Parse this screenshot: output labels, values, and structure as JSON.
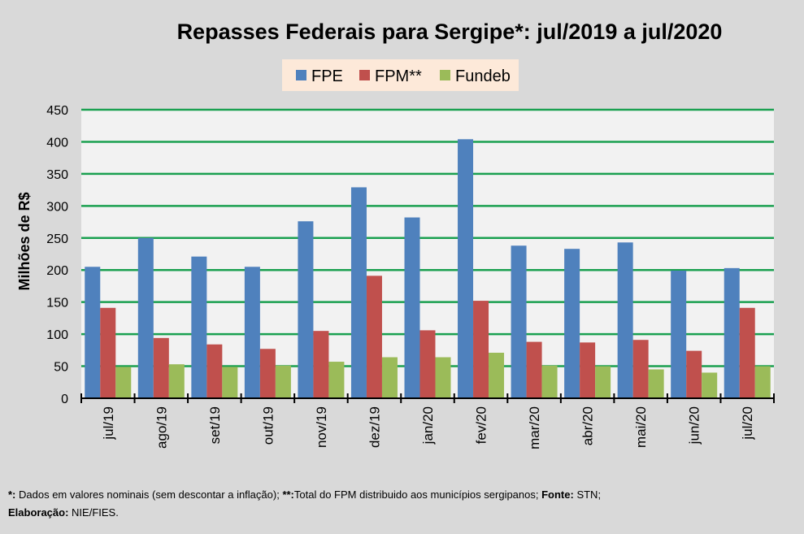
{
  "chart_data": {
    "type": "bar",
    "title": "Repasses Federais para Sergipe*: jul/2019 a jul/2020",
    "xlabel": "",
    "ylabel": "Milhões de R$",
    "ylim": [
      0,
      450
    ],
    "yticks": [
      0,
      50,
      100,
      150,
      200,
      250,
      300,
      350,
      400,
      450
    ],
    "grid": true,
    "legend_position": "top-center",
    "categories": [
      "jul/19",
      "ago/19",
      "set/19",
      "out/19",
      "nov/19",
      "dez/19",
      "jan/20",
      "fev/20",
      "mar/20",
      "abr/20",
      "mai/20",
      "jun/20",
      "jul/20"
    ],
    "series": [
      {
        "name": "FPE",
        "color": "#4f81bd",
        "values": [
          205,
          250,
          221,
          205,
          276,
          329,
          282,
          404,
          238,
          233,
          243,
          199,
          203
        ]
      },
      {
        "name": "FPM**",
        "color": "#c0504d",
        "values": [
          141,
          94,
          84,
          77,
          105,
          191,
          106,
          152,
          88,
          87,
          91,
          74,
          141
        ]
      },
      {
        "name": "Fundeb",
        "color": "#9bbb59",
        "values": [
          49,
          53,
          49,
          51,
          57,
          64,
          64,
          71,
          51,
          50,
          45,
          40,
          50
        ]
      }
    ]
  },
  "colors": {
    "background": "#d9d9d9",
    "plot_background": "#f2f2f2",
    "gridline": "#1aa050",
    "legend_background": "#fde9d9"
  },
  "footnote": {
    "line1_star_label": "*:",
    "line1_star_text": " Dados em valores nominais (sem descontar a inflação); ",
    "line1_dstar_label": "**:",
    "line1_dstar_text": "Total  do FPM distribuido aos municípios sergipanos; ",
    "line1_source_label": "Fonte:",
    "line1_source_text": " STN;",
    "line2_label": "Elaboração:",
    "line2_text": " NIE/FIES."
  }
}
